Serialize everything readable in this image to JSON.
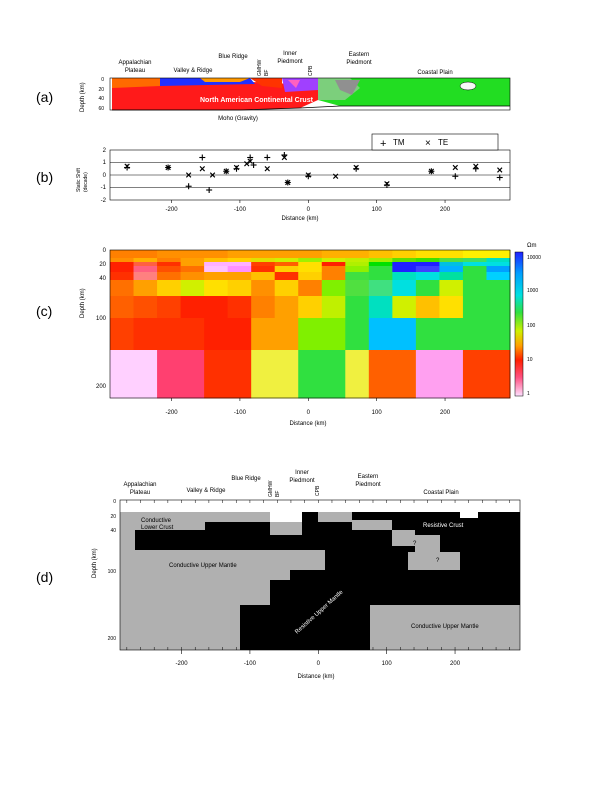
{
  "panel_labels": [
    "(a)",
    "(b)",
    "(c)",
    "(d)"
  ],
  "regions_top": {
    "appalachian": [
      "Appalachian",
      "Plateau"
    ],
    "valley_ridge": "Valley & Ridge",
    "blue_ridge": "Blue Ridge",
    "gmhw": "GMHW",
    "bf": "BF",
    "inner": [
      "Inner",
      "Piedmont"
    ],
    "cpb": "CPB",
    "eastern": [
      "Eastern",
      "Piedmont"
    ],
    "coastal": "Coastal Plain"
  },
  "regions_d": {
    "appalachian": [
      "Appalachian",
      "Plateau"
    ],
    "valley_ridge": "Valley & Ridge",
    "blue_ridge": "Blue Ridge",
    "gmhw": "GMHW",
    "bf": "BF",
    "inner": [
      "Inner",
      "Piedmont"
    ],
    "cpb": "CPB",
    "eastern": [
      "Eastern",
      "Piedmont"
    ],
    "coastal": "Coastal Plain"
  },
  "panel_a": {
    "ylabel": "Depth (km)",
    "yticks": [
      "0",
      "20",
      "40",
      "60"
    ],
    "crust_label": "North American Continental Crust",
    "moho_label": "Moho (Gravity)"
  },
  "panel_b": {
    "ylabel": [
      "Static Shift",
      "(decade)"
    ],
    "yticks": [
      "2",
      "1",
      "0",
      "-1",
      "-2"
    ],
    "xticks": [
      "-200",
      "-100",
      "0",
      "100",
      "200"
    ],
    "xlabel": "Distance (km)",
    "legend": {
      "tm": "TM",
      "te": "TE"
    }
  },
  "panel_c": {
    "ylabel": "Depth (km)",
    "yticks": [
      "0",
      "20",
      "40",
      "100",
      "200"
    ],
    "xticks": [
      "-200",
      "-100",
      "0",
      "100",
      "200"
    ],
    "xlabel": "Distance (km)",
    "colorbar_unit": "Ωm",
    "colorbar_ticks": [
      "10000",
      "1000",
      "100",
      "10",
      "1"
    ]
  },
  "panel_d": {
    "ylabel": "Depth (km)",
    "yticks": [
      "0",
      "20",
      "40",
      "100",
      "200"
    ],
    "xticks": [
      "-200",
      "-100",
      "0",
      "100",
      "200"
    ],
    "xlabel": "Distance (km)",
    "labels": {
      "conductive_lower_crust": [
        "Conductive",
        "Lower Crust"
      ],
      "resistive_crust": "Resistive Crust",
      "q1": "?",
      "q2": "?",
      "conductive_upper_mantle_1": "Conductive Upper Mantle",
      "resistive_upper_mantle": "Resistive Upper Mantle",
      "conductive_upper_mantle_2": "Conductive Upper Mantle"
    }
  },
  "chart_data": {
    "type": "scatter",
    "title": "",
    "xlabel": "Distance (km)",
    "ylabel": "Static Shift (decade)",
    "xlim": [
      -290,
      295
    ],
    "ylim": [
      -2,
      2
    ],
    "series": [
      {
        "name": "TM",
        "marker": "+",
        "x": [
          -265,
          -205,
          -175,
          -155,
          -145,
          -120,
          -105,
          -85,
          -80,
          -60,
          -35,
          -30,
          0,
          70,
          115,
          180,
          215,
          245,
          280
        ],
        "y": [
          0.6,
          0.6,
          -0.9,
          1.4,
          -1.2,
          0.3,
          0.5,
          1.4,
          0.8,
          1.4,
          1.6,
          -0.6,
          -0.1,
          0.5,
          -0.8,
          0.3,
          -0.1,
          0.5,
          -0.2
        ]
      },
      {
        "name": "TE",
        "marker": "x",
        "x": [
          -265,
          -205,
          -175,
          -155,
          -140,
          -120,
          -105,
          -90,
          -85,
          -60,
          -35,
          -30,
          0,
          40,
          70,
          115,
          180,
          215,
          245,
          280
        ],
        "y": [
          0.7,
          0.6,
          0.0,
          0.5,
          0.0,
          0.3,
          0.6,
          0.9,
          1.1,
          0.5,
          1.4,
          -0.6,
          0.0,
          -0.1,
          0.6,
          -0.7,
          0.3,
          0.6,
          0.7,
          0.4
        ]
      }
    ]
  }
}
